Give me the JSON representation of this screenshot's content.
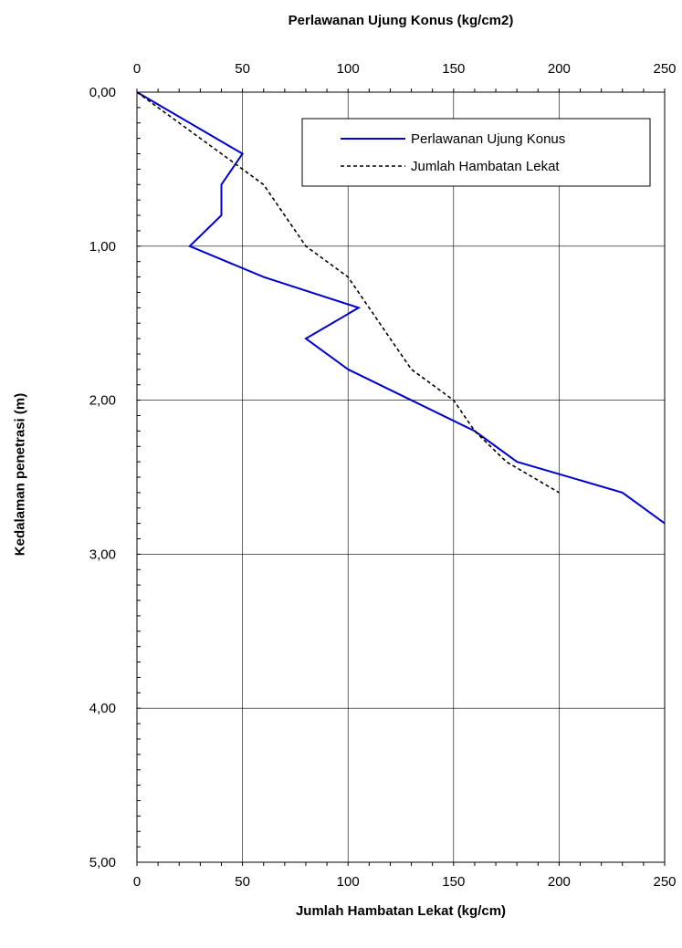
{
  "chart_data": {
    "type": "line",
    "title_top": "Perlawanan Ujung Konus (kg/cm2)",
    "xlabel_bottom": "Jumlah Hambatan Lekat (kg/cm)",
    "ylabel": "Kedalaman penetrasi (m)",
    "x_range": [
      0,
      250
    ],
    "y_range": [
      0,
      5
    ],
    "y_inverted": true,
    "x_ticks": [
      "0",
      "50",
      "100",
      "150",
      "200",
      "250"
    ],
    "y_ticks": [
      "0,00",
      "1,00",
      "2,00",
      "3,00",
      "4,00",
      "5,00"
    ],
    "grid": true,
    "legend_position": "top-right",
    "series": [
      {
        "name": "Perlawanan Ujung Konus",
        "color": "#0000CC",
        "style": "solid",
        "points": [
          [
            0,
            0
          ],
          [
            50,
            0.4
          ],
          [
            40,
            0.6
          ],
          [
            40,
            0.8
          ],
          [
            25,
            1.0
          ],
          [
            60,
            1.2
          ],
          [
            105,
            1.4
          ],
          [
            80,
            1.6
          ],
          [
            100,
            1.8
          ],
          [
            160,
            2.2
          ],
          [
            180,
            2.4
          ],
          [
            230,
            2.6
          ],
          [
            250,
            2.8
          ]
        ]
      },
      {
        "name": "Jumlah Hambatan Lekat",
        "color": "#000000",
        "style": "dashed",
        "points": [
          [
            0,
            0
          ],
          [
            40,
            0.4
          ],
          [
            60,
            0.6
          ],
          [
            70,
            0.8
          ],
          [
            80,
            1.0
          ],
          [
            100,
            1.2
          ],
          [
            110,
            1.4
          ],
          [
            120,
            1.6
          ],
          [
            130,
            1.8
          ],
          [
            150,
            2.0
          ],
          [
            160,
            2.2
          ],
          [
            175,
            2.4
          ],
          [
            200,
            2.6
          ]
        ]
      }
    ]
  }
}
